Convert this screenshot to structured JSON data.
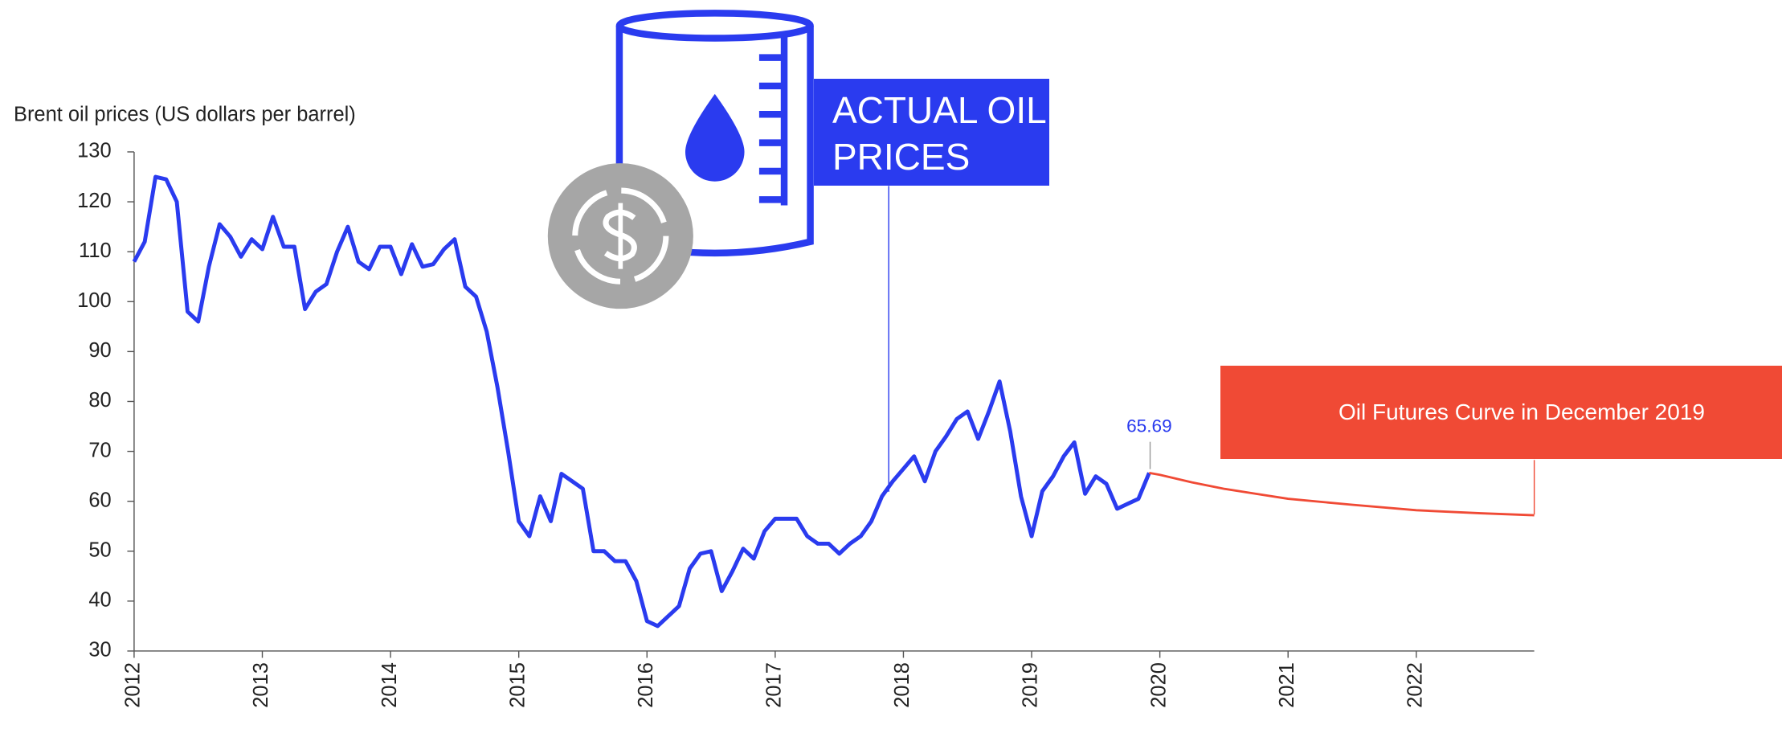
{
  "chart_data": {
    "type": "line",
    "y_label": "Brent oil prices (US dollars per barrel)",
    "xlim": [
      2012,
      2022.92
    ],
    "xticks": [
      2012,
      2013,
      2014,
      2015,
      2016,
      2017,
      2018,
      2019,
      2020,
      2021,
      2022
    ],
    "ylim": [
      30,
      130
    ],
    "yticks": [
      30,
      40,
      50,
      60,
      70,
      80,
      90,
      100,
      110,
      120,
      130
    ],
    "grid": false,
    "series": [
      {
        "name": "ACTUAL OIL PRICES",
        "color": "#2a3bef",
        "x": [
          2012,
          2012.083,
          2012.167,
          2012.25,
          2012.333,
          2012.417,
          2012.5,
          2012.583,
          2012.667,
          2012.75,
          2012.833,
          2012.917,
          2013,
          2013.083,
          2013.167,
          2013.25,
          2013.333,
          2013.417,
          2013.5,
          2013.583,
          2013.667,
          2013.75,
          2013.833,
          2013.917,
          2014,
          2014.083,
          2014.167,
          2014.25,
          2014.333,
          2014.417,
          2014.5,
          2014.583,
          2014.667,
          2014.75,
          2014.833,
          2014.917,
          2015,
          2015.083,
          2015.167,
          2015.25,
          2015.333,
          2015.417,
          2015.5,
          2015.583,
          2015.667,
          2015.75,
          2015.833,
          2015.917,
          2016,
          2016.083,
          2016.167,
          2016.25,
          2016.333,
          2016.417,
          2016.5,
          2016.583,
          2016.667,
          2016.75,
          2016.833,
          2016.917,
          2017,
          2017.083,
          2017.167,
          2017.25,
          2017.333,
          2017.417,
          2017.5,
          2017.583,
          2017.667,
          2017.75,
          2017.833,
          2017.917,
          2018,
          2018.083,
          2018.167,
          2018.25,
          2018.333,
          2018.417,
          2018.5,
          2018.583,
          2018.667,
          2018.75,
          2018.833,
          2018.917,
          2019,
          2019.083,
          2019.167,
          2019.25,
          2019.333,
          2019.417,
          2019.5,
          2019.583,
          2019.667,
          2019.75,
          2019.833,
          2019.917
        ],
        "values": [
          108,
          112,
          125,
          124.5,
          120,
          98,
          96,
          107,
          115.5,
          113,
          109,
          112.5,
          110.5,
          117,
          111,
          111,
          98.5,
          102,
          103.5,
          110,
          115,
          108,
          106.5,
          111,
          111,
          105.5,
          111.5,
          107,
          107.5,
          110.5,
          112.5,
          103,
          101,
          94,
          83,
          70,
          56,
          53,
          61,
          56,
          65.5,
          64,
          62.5,
          50,
          50,
          48,
          48,
          44,
          36,
          35,
          37,
          39,
          46.5,
          49.5,
          50,
          42,
          46,
          50.5,
          48.5,
          54,
          56.5,
          56.5,
          56.5,
          53,
          51.5,
          51.5,
          49.5,
          51.5,
          53,
          56,
          61,
          64,
          66.5,
          69,
          64,
          70,
          73,
          76.5,
          78,
          72.5,
          78,
          84,
          74,
          61,
          53,
          62,
          65,
          69,
          71.8,
          61.5,
          65,
          63.5,
          58.5,
          59.5,
          60.5,
          65.69
        ]
      },
      {
        "name": "Oil Futures Curve in December 2019",
        "color": "#f04a35",
        "x": [
          2019.917,
          2020,
          2020.25,
          2020.5,
          2020.75,
          2021,
          2021.5,
          2022,
          2022.5,
          2022.92
        ],
        "values": [
          65.69,
          65.3,
          63.8,
          62.5,
          61.5,
          60.5,
          59.3,
          58.2,
          57.6,
          57.2
        ]
      }
    ]
  }
}
